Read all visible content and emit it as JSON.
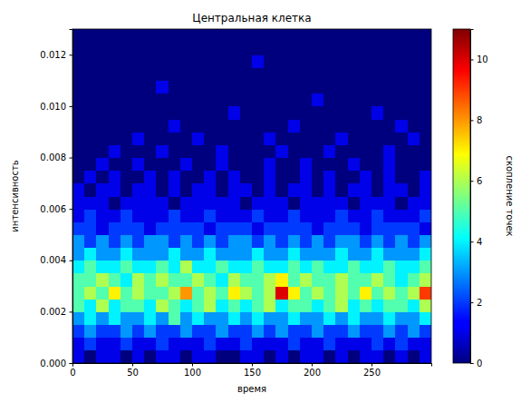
{
  "chart_data": {
    "type": "heatmap",
    "title": "Центральная клетка",
    "x_label": "время",
    "y_label": "интенсивность",
    "xlim": [
      0,
      300
    ],
    "ylim": [
      0,
      0.013
    ],
    "xticks": [
      0,
      50,
      100,
      150,
      200,
      250
    ],
    "yticks": [
      {
        "value": 0,
        "label": "0.000"
      },
      0.002,
      0.004,
      0.006,
      0.008,
      {
        "value": 0.01,
        "label": "0.010"
      },
      0.012
    ],
    "x_bins": [
      0,
      10,
      20,
      30,
      40,
      50,
      60,
      70,
      80,
      90,
      100,
      110,
      120,
      130,
      140,
      150,
      160,
      170,
      180,
      190,
      200,
      210,
      220,
      230,
      240,
      250,
      260,
      270,
      280,
      290,
      300
    ],
    "y_bins": [
      0,
      0.0005,
      0.001,
      0.0015,
      0.002,
      0.0025,
      0.003,
      0.0035,
      0.004,
      0.0045,
      0.005,
      0.0055,
      0.006,
      0.0065,
      0.007,
      0.0075,
      0.008,
      0.0085,
      0.009,
      0.0095,
      0.01,
      0.0105,
      0.011,
      0.0115,
      0.012,
      0.0125,
      0.013
    ],
    "counts": [
      [
        1,
        0,
        1,
        1,
        0,
        1,
        0,
        1,
        1,
        0,
        1,
        1,
        0,
        0,
        1,
        1,
        0,
        1,
        0,
        1,
        1,
        0,
        1,
        0,
        1,
        1,
        0,
        1,
        0,
        1
      ],
      [
        1,
        2,
        1,
        1,
        2,
        1,
        1,
        2,
        1,
        1,
        1,
        2,
        1,
        1,
        2,
        1,
        1,
        1,
        2,
        1,
        1,
        2,
        1,
        1,
        1,
        2,
        1,
        2,
        1,
        1
      ],
      [
        2,
        3,
        2,
        2,
        3,
        2,
        3,
        2,
        2,
        3,
        2,
        2,
        3,
        2,
        2,
        3,
        2,
        3,
        2,
        2,
        3,
        2,
        2,
        3,
        2,
        2,
        3,
        2,
        3,
        2
      ],
      [
        3,
        4,
        3,
        4,
        3,
        3,
        4,
        3,
        5,
        3,
        4,
        3,
        3,
        4,
        3,
        4,
        3,
        3,
        4,
        3,
        3,
        4,
        3,
        4,
        3,
        3,
        4,
        3,
        3,
        4
      ],
      [
        5,
        4,
        6,
        4,
        5,
        5,
        4,
        6,
        5,
        4,
        5,
        6,
        4,
        5,
        4,
        5,
        6,
        4,
        5,
        5,
        4,
        5,
        6,
        4,
        5,
        4,
        5,
        5,
        4,
        6
      ],
      [
        5,
        6,
        5,
        7,
        5,
        6,
        5,
        5,
        6,
        8,
        5,
        6,
        5,
        7,
        6,
        5,
        6,
        10,
        7,
        5,
        6,
        5,
        6,
        5,
        7,
        5,
        6,
        5,
        6,
        9
      ],
      [
        5,
        5,
        6,
        5,
        4,
        6,
        5,
        6,
        5,
        5,
        6,
        5,
        4,
        6,
        5,
        5,
        6,
        7,
        5,
        6,
        5,
        5,
        6,
        5,
        5,
        6,
        5,
        4,
        5,
        6
      ],
      [
        4,
        5,
        4,
        4,
        5,
        4,
        4,
        5,
        4,
        6,
        4,
        4,
        5,
        4,
        4,
        5,
        4,
        4,
        5,
        4,
        5,
        4,
        4,
        5,
        4,
        4,
        5,
        4,
        4,
        5
      ],
      [
        3,
        4,
        3,
        3,
        4,
        3,
        3,
        3,
        4,
        3,
        3,
        4,
        3,
        3,
        3,
        4,
        3,
        3,
        4,
        3,
        3,
        3,
        4,
        3,
        3,
        4,
        3,
        3,
        3,
        4
      ],
      [
        3,
        2,
        3,
        2,
        3,
        2,
        3,
        3,
        2,
        3,
        2,
        3,
        2,
        3,
        3,
        2,
        3,
        2,
        3,
        2,
        3,
        2,
        3,
        3,
        2,
        3,
        2,
        3,
        2,
        3
      ],
      [
        2,
        2,
        1,
        2,
        2,
        2,
        1,
        2,
        2,
        2,
        2,
        1,
        2,
        2,
        2,
        1,
        2,
        2,
        2,
        2,
        1,
        2,
        2,
        2,
        1,
        2,
        2,
        2,
        2,
        1
      ],
      [
        1,
        2,
        1,
        1,
        2,
        1,
        1,
        1,
        2,
        1,
        1,
        2,
        1,
        1,
        1,
        2,
        1,
        1,
        2,
        1,
        1,
        1,
        2,
        1,
        1,
        2,
        1,
        1,
        1,
        2
      ],
      [
        1,
        1,
        1,
        0,
        1,
        1,
        1,
        1,
        0,
        1,
        1,
        1,
        1,
        1,
        0,
        1,
        1,
        1,
        0,
        1,
        1,
        1,
        1,
        0,
        1,
        1,
        1,
        0,
        1,
        1
      ],
      [
        1,
        0,
        1,
        1,
        0,
        1,
        1,
        0,
        1,
        0,
        1,
        1,
        0,
        1,
        1,
        0,
        1,
        0,
        1,
        1,
        0,
        1,
        0,
        1,
        1,
        0,
        1,
        1,
        0,
        1
      ],
      [
        0,
        1,
        0,
        1,
        0,
        0,
        1,
        0,
        1,
        0,
        0,
        1,
        0,
        1,
        0,
        0,
        1,
        0,
        0,
        1,
        0,
        1,
        0,
        0,
        1,
        0,
        1,
        0,
        0,
        1
      ],
      [
        0,
        0,
        1,
        0,
        0,
        1,
        0,
        0,
        0,
        1,
        0,
        0,
        1,
        0,
        0,
        0,
        1,
        0,
        0,
        1,
        0,
        0,
        0,
        1,
        0,
        0,
        1,
        0,
        0,
        0
      ],
      [
        0,
        0,
        0,
        1,
        0,
        0,
        0,
        1,
        0,
        0,
        0,
        0,
        1,
        0,
        0,
        0,
        0,
        1,
        0,
        0,
        0,
        1,
        0,
        0,
        0,
        0,
        1,
        0,
        0,
        0
      ],
      [
        0,
        0,
        0,
        0,
        0,
        1,
        0,
        0,
        0,
        0,
        1,
        0,
        0,
        0,
        0,
        0,
        1,
        0,
        0,
        0,
        0,
        0,
        1,
        0,
        0,
        0,
        0,
        0,
        1,
        0
      ],
      [
        0,
        0,
        0,
        0,
        0,
        0,
        0,
        0,
        1,
        0,
        0,
        0,
        0,
        0,
        0,
        0,
        0,
        0,
        1,
        0,
        0,
        0,
        0,
        0,
        0,
        0,
        0,
        1,
        0,
        0
      ],
      [
        0,
        0,
        0,
        0,
        0,
        0,
        0,
        0,
        0,
        0,
        0,
        0,
        0,
        1,
        0,
        0,
        0,
        0,
        0,
        0,
        0,
        0,
        0,
        0,
        0,
        1,
        0,
        0,
        0,
        0
      ],
      [
        0,
        0,
        0,
        0,
        0,
        0,
        0,
        0,
        0,
        0,
        0,
        0,
        0,
        0,
        0,
        0,
        0,
        0,
        0,
        0,
        1,
        0,
        0,
        0,
        0,
        0,
        0,
        0,
        0,
        0
      ],
      [
        0,
        0,
        0,
        0,
        0,
        0,
        0,
        1,
        0,
        0,
        0,
        0,
        0,
        0,
        0,
        0,
        0,
        0,
        0,
        0,
        0,
        0,
        0,
        0,
        0,
        0,
        0,
        0,
        0,
        0
      ],
      [
        0,
        0,
        0,
        0,
        0,
        0,
        0,
        0,
        0,
        0,
        0,
        0,
        0,
        0,
        0,
        0,
        0,
        0,
        0,
        0,
        0,
        0,
        0,
        0,
        0,
        0,
        0,
        0,
        0,
        0
      ],
      [
        0,
        0,
        0,
        0,
        0,
        0,
        0,
        0,
        0,
        0,
        0,
        0,
        0,
        0,
        0,
        1,
        0,
        0,
        0,
        0,
        0,
        0,
        0,
        0,
        0,
        0,
        0,
        0,
        0,
        0
      ],
      [
        0,
        0,
        0,
        0,
        0,
        0,
        0,
        0,
        0,
        0,
        0,
        0,
        0,
        0,
        0,
        0,
        0,
        0,
        0,
        0,
        0,
        0,
        0,
        0,
        0,
        0,
        0,
        0,
        0,
        0
      ],
      [
        0,
        0,
        0,
        0,
        0,
        0,
        0,
        0,
        0,
        0,
        0,
        0,
        0,
        0,
        0,
        0,
        0,
        0,
        0,
        0,
        0,
        0,
        0,
        0,
        0,
        0,
        0,
        0,
        0,
        0
      ]
    ],
    "colorbar": {
      "range": [
        0,
        11
      ],
      "ticks": [
        0,
        2,
        4,
        6,
        8,
        10
      ],
      "label": "скопление точек"
    }
  }
}
